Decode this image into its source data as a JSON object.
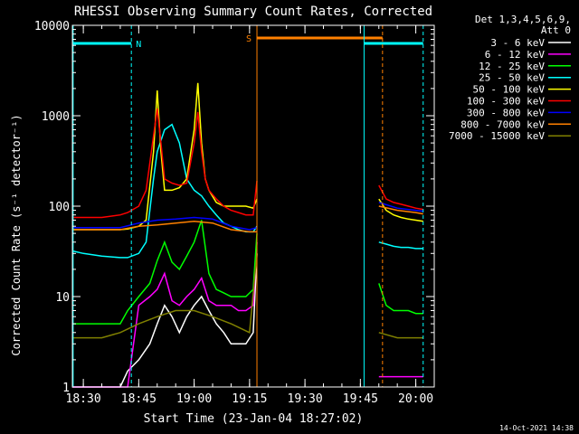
{
  "colors": {
    "background": "#000000",
    "foreground": "#ffffff",
    "cyan": "#00ffff",
    "orange": "#ff8000"
  },
  "chart_data": {
    "type": "line",
    "title": "RHESSI Observing Summary Count Rates, Corrected",
    "xlabel": "Start Time (23-Jan-04 18:27:02)",
    "ylabel": "Corrected Count Rate (s⁻¹ detector⁻¹)",
    "yscale": "log",
    "ylim": [
      1,
      10000
    ],
    "xlim": [
      "18:27:02",
      "20:05"
    ],
    "x_ticks": [
      "18:30",
      "18:45",
      "19:00",
      "19:15",
      "19:30",
      "19:45",
      "20:00"
    ],
    "y_ticks": [
      "1",
      "10",
      "100",
      "1000",
      "10000"
    ],
    "grid": false,
    "legend_title": [
      "Det 1,3,4,5,6,9,",
      "Att 0"
    ],
    "legend_position": "right",
    "footer": "14-Oct-2021 14:38",
    "flags": [
      {
        "label": "N",
        "color": "#00ffff"
      },
      {
        "label": "S",
        "color": "#ff8000"
      }
    ],
    "data_gap": [
      "19:17",
      "19:50"
    ],
    "series": [
      {
        "name": "3 - 6 keV",
        "color": "#ffffff",
        "x": [
          "18:27",
          "18:30",
          "18:35",
          "18:40",
          "18:42",
          "18:45",
          "18:48",
          "18:50",
          "18:52",
          "18:54",
          "18:56",
          "18:58",
          "19:00",
          "19:02",
          "19:04",
          "19:06",
          "19:08",
          "19:10",
          "19:12",
          "19:14",
          "19:16",
          "19:17"
        ],
        "y": [
          1,
          1,
          1,
          1,
          1.5,
          2,
          3,
          5,
          8,
          6,
          4,
          6,
          8,
          10,
          7,
          5,
          4,
          3,
          3,
          3,
          4,
          30
        ]
      },
      {
        "name": "6 - 12 keV",
        "color": "#ff00ff",
        "x": [
          "18:27",
          "18:30",
          "18:35",
          "18:40",
          "18:42",
          "18:45",
          "18:48",
          "18:50",
          "18:52",
          "18:54",
          "18:56",
          "18:58",
          "19:00",
          "19:02",
          "19:04",
          "19:06",
          "19:08",
          "19:10",
          "19:12",
          "19:14",
          "19:16",
          "19:17",
          "19:50",
          "19:52",
          "19:54",
          "19:56",
          "19:58",
          "20:00",
          "20:02"
        ],
        "y": [
          1,
          1,
          1,
          1,
          1,
          8,
          10,
          12,
          18,
          9,
          8,
          10,
          12,
          16,
          9,
          8,
          8,
          8,
          7,
          7,
          8,
          40,
          1.3,
          1.3,
          1.3,
          1.3,
          1.3,
          1.3,
          1.3
        ]
      },
      {
        "name": "12 - 25 keV",
        "color": "#00ff00",
        "x": [
          "18:27",
          "18:30",
          "18:35",
          "18:40",
          "18:42",
          "18:45",
          "18:48",
          "18:50",
          "18:52",
          "18:54",
          "18:56",
          "18:58",
          "19:00",
          "19:02",
          "19:04",
          "19:06",
          "19:08",
          "19:10",
          "19:12",
          "19:14",
          "19:16",
          "19:17",
          "19:50",
          "19:52",
          "19:54",
          "19:56",
          "19:58",
          "20:00",
          "20:02"
        ],
        "y": [
          5,
          5,
          5,
          5,
          7,
          10,
          14,
          25,
          40,
          24,
          20,
          28,
          40,
          70,
          18,
          12,
          11,
          10,
          10,
          10,
          12,
          50,
          14,
          8,
          7,
          7,
          7,
          6.5,
          6.5
        ]
      },
      {
        "name": "25 - 50 keV",
        "color": "#00ffff",
        "x": [
          "18:27",
          "18:30",
          "18:35",
          "18:40",
          "18:42",
          "18:45",
          "18:47",
          "18:49",
          "18:50",
          "18:52",
          "18:54",
          "18:56",
          "18:58",
          "19:00",
          "19:02",
          "19:04",
          "19:06",
          "19:08",
          "19:10",
          "19:12",
          "19:14",
          "19:16",
          "19:17",
          "19:50",
          "19:52",
          "19:54",
          "19:56",
          "19:58",
          "20:00",
          "20:02"
        ],
        "y": [
          32,
          30,
          28,
          27,
          27,
          30,
          40,
          200,
          400,
          700,
          800,
          500,
          200,
          150,
          130,
          100,
          80,
          65,
          60,
          55,
          52,
          52,
          60,
          40,
          38,
          36,
          35,
          35,
          34,
          34
        ]
      },
      {
        "name": "50 - 100 keV",
        "color": "#ffff00",
        "x": [
          "18:27",
          "18:30",
          "18:35",
          "18:40",
          "18:42",
          "18:45",
          "18:47",
          "18:49",
          "18:50",
          "18:51",
          "18:52",
          "18:54",
          "18:56",
          "18:58",
          "19:00",
          "19:01",
          "19:02",
          "19:03",
          "19:04",
          "19:06",
          "19:08",
          "19:10",
          "19:12",
          "19:14",
          "19:16",
          "19:17",
          "19:50",
          "19:52",
          "19:54",
          "19:56",
          "19:58",
          "20:00",
          "20:02"
        ],
        "y": [
          55,
          55,
          55,
          55,
          56,
          60,
          70,
          400,
          1900,
          400,
          150,
          150,
          160,
          200,
          700,
          2300,
          500,
          200,
          150,
          110,
          100,
          100,
          100,
          100,
          95,
          120,
          120,
          90,
          80,
          75,
          72,
          70,
          68
        ]
      },
      {
        "name": "100 - 300 keV",
        "color": "#ff0000",
        "x": [
          "18:27",
          "18:30",
          "18:35",
          "18:40",
          "18:42",
          "18:45",
          "18:47",
          "18:49",
          "18:50",
          "18:51",
          "18:52",
          "18:54",
          "18:56",
          "18:58",
          "19:00",
          "19:01",
          "19:02",
          "19:03",
          "19:04",
          "19:06",
          "19:08",
          "19:10",
          "19:12",
          "19:14",
          "19:16",
          "19:17",
          "19:50",
          "19:52",
          "19:54",
          "19:56",
          "19:58",
          "20:00",
          "20:02"
        ],
        "y": [
          75,
          75,
          75,
          80,
          85,
          100,
          150,
          600,
          1200,
          500,
          200,
          180,
          170,
          180,
          500,
          1100,
          400,
          200,
          150,
          120,
          100,
          90,
          85,
          80,
          80,
          190,
          170,
          120,
          110,
          105,
          100,
          95,
          92
        ]
      },
      {
        "name": "300 - 800 keV",
        "color": "#0000ff",
        "x": [
          "18:27",
          "18:30",
          "18:35",
          "18:40",
          "18:45",
          "18:50",
          "18:55",
          "19:00",
          "19:05",
          "19:10",
          "19:15",
          "19:17",
          "19:50",
          "19:55",
          "20:00",
          "20:02"
        ],
        "y": [
          58,
          58,
          58,
          58,
          65,
          70,
          72,
          75,
          72,
          60,
          55,
          58,
          110,
          95,
          90,
          88
        ]
      },
      {
        "name": "800 - 7000 keV",
        "color": "#ff8000",
        "x": [
          "18:27",
          "18:30",
          "18:35",
          "18:40",
          "18:45",
          "18:50",
          "18:55",
          "19:00",
          "19:05",
          "19:10",
          "19:15",
          "19:17",
          "19:50",
          "19:55",
          "20:00",
          "20:02"
        ],
        "y": [
          55,
          55,
          55,
          55,
          60,
          62,
          65,
          68,
          65,
          55,
          52,
          52,
          100,
          90,
          85,
          82
        ]
      },
      {
        "name": "7000 - 15000 keV",
        "color": "#808000",
        "x": [
          "18:27",
          "18:30",
          "18:35",
          "18:40",
          "18:45",
          "18:50",
          "18:55",
          "19:00",
          "19:05",
          "19:10",
          "19:15",
          "19:17",
          "19:50",
          "19:55",
          "20:00",
          "20:02"
        ],
        "y": [
          3.5,
          3.5,
          3.5,
          4,
          5,
          6,
          7,
          7,
          6,
          5,
          4,
          30,
          4,
          3.5,
          3.5,
          3.5
        ]
      }
    ]
  }
}
